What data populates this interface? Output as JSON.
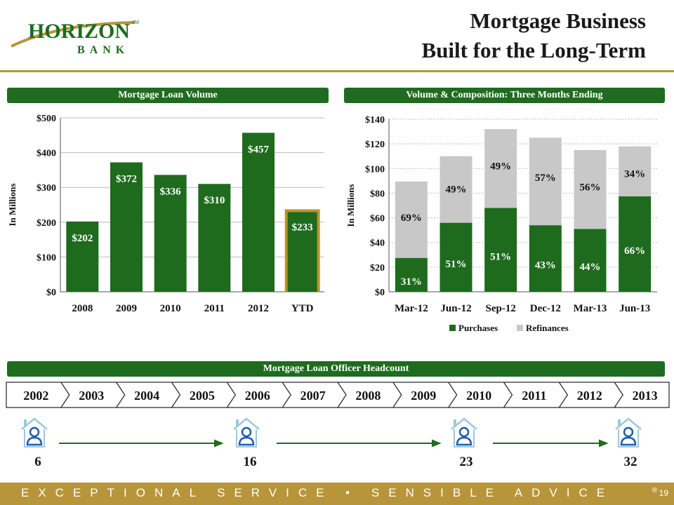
{
  "header": {
    "logo_text": "HORIZON",
    "logo_sub": "BANK",
    "logo_mark": "SM",
    "title_line1": "Mortgage Business",
    "title_line2": "Built for the Long-Term"
  },
  "sections": {
    "left_title": "Mortgage Loan Volume",
    "right_title": "Volume & Composition: Three Months Ending",
    "headcount_title": "Mortgage Loan Officer Headcount"
  },
  "chart_data": [
    {
      "type": "bar",
      "title": "Mortgage Loan Volume",
      "ylabel": "In Millions",
      "categories": [
        "2008",
        "2009",
        "2010",
        "2011",
        "2012",
        "YTD"
      ],
      "values": [
        202,
        372,
        336,
        310,
        457,
        233
      ],
      "data_labels": [
        "$202",
        "$372",
        "$336",
        "$310",
        "$457",
        "$233"
      ],
      "ylim": [
        0,
        500
      ],
      "yticks": [
        0,
        100,
        200,
        300,
        400,
        500
      ],
      "ytick_labels": [
        "$0",
        "$100",
        "$200",
        "$300",
        "$400",
        "$500"
      ],
      "highlighted_category": "YTD",
      "bar_color": "#1e6b1e",
      "highlight_color": "#b8952e",
      "grid": true
    },
    {
      "type": "bar",
      "stacked": true,
      "title": "Volume & Composition: Three Months Ending",
      "ylabel": "In Millions",
      "categories": [
        "Mar-12",
        "Jun-12",
        "Sep-12",
        "Dec-12",
        "Mar-13",
        "Jun-13"
      ],
      "series": [
        {
          "name": "Purchases",
          "values": [
            27.5,
            56,
            68,
            54,
            51,
            77.5
          ],
          "color": "#1e6b1e",
          "labels": [
            "31%",
            "51%",
            "51%",
            "43%",
            "44%",
            "66%"
          ]
        },
        {
          "name": "Refinances",
          "values": [
            62,
            54,
            64,
            71,
            64,
            40.5
          ],
          "color": "#c8c8c8",
          "labels": [
            "69%",
            "49%",
            "49%",
            "57%",
            "56%",
            "34%"
          ]
        }
      ],
      "ylim": [
        0,
        140
      ],
      "yticks": [
        0,
        20,
        40,
        60,
        80,
        100,
        120,
        140
      ],
      "ytick_labels": [
        "$0",
        "$20",
        "$40",
        "$60",
        "$80",
        "$100",
        "$120",
        "$140"
      ],
      "legend_position": "bottom",
      "grid": true
    }
  ],
  "timeline": {
    "years": [
      "2002",
      "2003",
      "2004",
      "2005",
      "2006",
      "2007",
      "2008",
      "2009",
      "2010",
      "2011",
      "2012",
      "2013"
    ]
  },
  "headcount": {
    "icon": "house-person-icon",
    "values": [
      "6",
      "16",
      "23",
      "32"
    ]
  },
  "footer": {
    "tagline": "EXCEPTIONAL SERVICE • SENSIBLE ADVICE",
    "registered": "®",
    "page_number": "19"
  },
  "colors": {
    "green": "#1f6b1f",
    "gold": "#b8953a",
    "grey": "#c8c8c8"
  }
}
